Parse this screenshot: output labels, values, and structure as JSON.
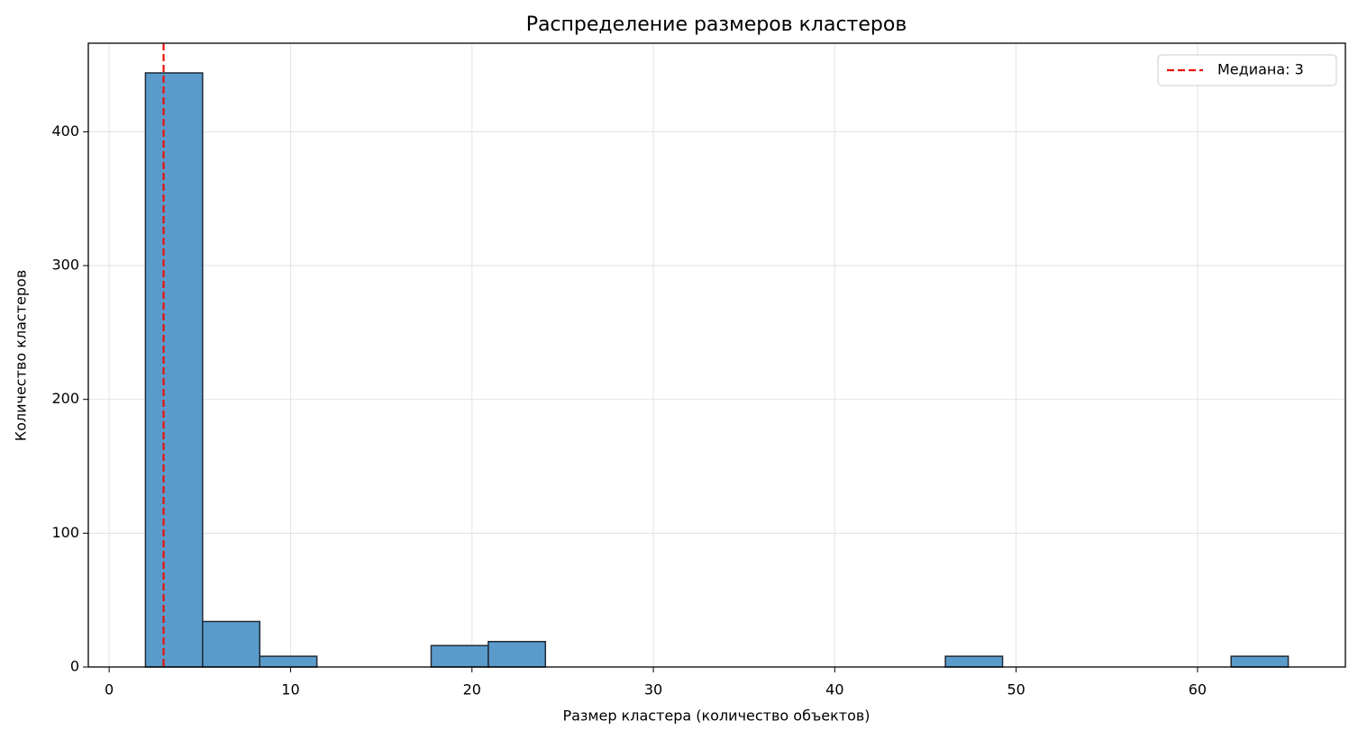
{
  "chart_data": {
    "type": "histogram",
    "title": "Распределение размеров кластеров",
    "x_label": "Размер кластера (количество объектов)",
    "y_label": "Количество кластеров",
    "bins": [
      2,
      5.15,
      8.3,
      11.45,
      14.6,
      17.75,
      20.9,
      24.05,
      27.2,
      30.35,
      33.5,
      36.65,
      39.8,
      42.95,
      46.1,
      49.25,
      52.4,
      55.55,
      58.7,
      61.85,
      65
    ],
    "values": [
      444,
      34,
      8,
      0,
      0,
      16,
      19,
      0,
      0,
      0,
      0,
      0,
      0,
      0,
      8,
      0,
      0,
      0,
      0,
      8
    ],
    "color": "#5b9bcb",
    "edge_color": "#1f2a36",
    "xlim": [
      -1.15,
      68.15
    ],
    "ylim": [
      0,
      466.2
    ],
    "xticks": [
      0,
      10,
      20,
      30,
      40,
      50,
      60
    ],
    "yticks": [
      0,
      100,
      200,
      300,
      400
    ],
    "grid": true,
    "median": {
      "value": 3,
      "label": "Медиана: 3",
      "color": "#e8120c"
    },
    "legend_position": "upper-right"
  }
}
